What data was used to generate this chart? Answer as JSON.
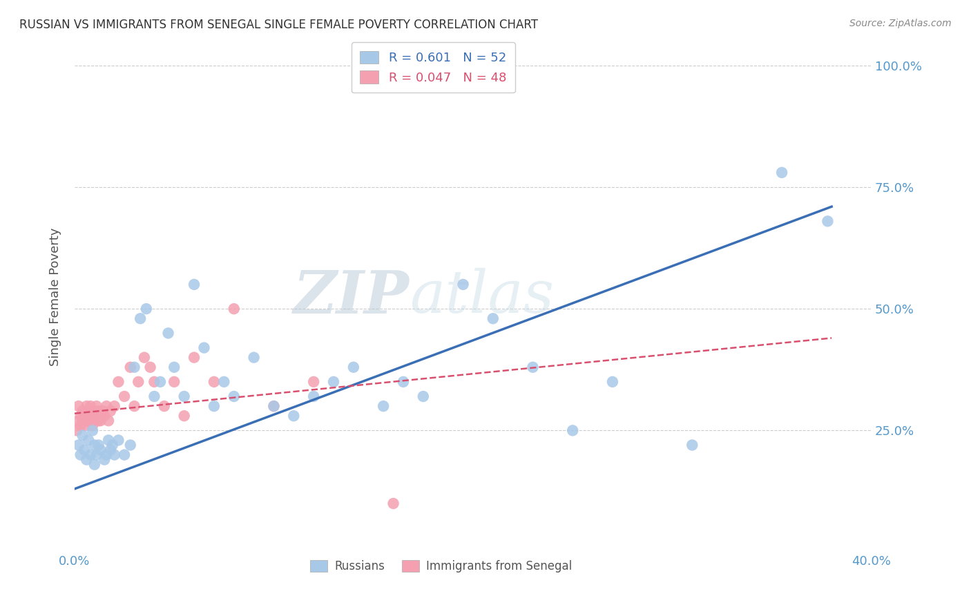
{
  "title": "RUSSIAN VS IMMIGRANTS FROM SENEGAL SINGLE FEMALE POVERTY CORRELATION CHART",
  "source": "Source: ZipAtlas.com",
  "ylabel": "Single Female Poverty",
  "xlim": [
    0.0,
    0.4
  ],
  "ylim": [
    0.0,
    1.05
  ],
  "x_ticks": [
    0.0,
    0.1,
    0.2,
    0.3,
    0.4
  ],
  "x_tick_labels": [
    "0.0%",
    "",
    "",
    "",
    "40.0%"
  ],
  "y_ticks": [
    0.0,
    0.25,
    0.5,
    0.75,
    1.0
  ],
  "y_tick_labels": [
    "",
    "25.0%",
    "50.0%",
    "75.0%",
    "100.0%"
  ],
  "russian_R": 0.601,
  "russian_N": 52,
  "senegal_R": 0.047,
  "senegal_N": 48,
  "russian_color": "#a8c8e8",
  "russian_line_color": "#3a6fb5",
  "senegal_color": "#f4a0b0",
  "senegal_line_color": "#d94f6e",
  "watermark_zip": "ZIP",
  "watermark_atlas": "atlas",
  "grid_color": "#cccccc",
  "russian_x": [
    0.002,
    0.003,
    0.004,
    0.005,
    0.006,
    0.007,
    0.008,
    0.009,
    0.01,
    0.01,
    0.011,
    0.012,
    0.013,
    0.015,
    0.016,
    0.017,
    0.018,
    0.019,
    0.02,
    0.022,
    0.025,
    0.028,
    0.03,
    0.033,
    0.036,
    0.04,
    0.043,
    0.047,
    0.05,
    0.055,
    0.06,
    0.065,
    0.07,
    0.075,
    0.08,
    0.09,
    0.1,
    0.11,
    0.12,
    0.13,
    0.14,
    0.155,
    0.165,
    0.175,
    0.195,
    0.21,
    0.23,
    0.25,
    0.27,
    0.31,
    0.355,
    0.378
  ],
  "russian_y": [
    0.22,
    0.2,
    0.24,
    0.21,
    0.19,
    0.23,
    0.2,
    0.25,
    0.22,
    0.18,
    0.2,
    0.22,
    0.21,
    0.19,
    0.2,
    0.23,
    0.21,
    0.22,
    0.2,
    0.23,
    0.2,
    0.22,
    0.38,
    0.48,
    0.5,
    0.32,
    0.35,
    0.45,
    0.38,
    0.32,
    0.55,
    0.42,
    0.3,
    0.35,
    0.32,
    0.4,
    0.3,
    0.28,
    0.32,
    0.35,
    0.38,
    0.3,
    0.35,
    0.32,
    0.55,
    0.48,
    0.38,
    0.25,
    0.35,
    0.22,
    0.78,
    0.68
  ],
  "senegal_x": [
    0.001,
    0.002,
    0.002,
    0.003,
    0.003,
    0.004,
    0.004,
    0.005,
    0.005,
    0.006,
    0.006,
    0.007,
    0.007,
    0.008,
    0.008,
    0.009,
    0.009,
    0.01,
    0.01,
    0.011,
    0.011,
    0.012,
    0.012,
    0.013,
    0.013,
    0.014,
    0.015,
    0.016,
    0.017,
    0.018,
    0.02,
    0.022,
    0.025,
    0.028,
    0.03,
    0.032,
    0.035,
    0.038,
    0.04,
    0.045,
    0.05,
    0.055,
    0.06,
    0.07,
    0.08,
    0.1,
    0.12,
    0.16
  ],
  "senegal_y": [
    0.25,
    0.27,
    0.3,
    0.26,
    0.28,
    0.29,
    0.27,
    0.28,
    0.26,
    0.3,
    0.27,
    0.29,
    0.28,
    0.27,
    0.3,
    0.28,
    0.26,
    0.29,
    0.27,
    0.28,
    0.3,
    0.27,
    0.29,
    0.28,
    0.27,
    0.29,
    0.28,
    0.3,
    0.27,
    0.29,
    0.3,
    0.35,
    0.32,
    0.38,
    0.3,
    0.35,
    0.4,
    0.38,
    0.35,
    0.3,
    0.35,
    0.28,
    0.4,
    0.35,
    0.5,
    0.3,
    0.35,
    0.1
  ],
  "russian_line_x": [
    0.0,
    0.38
  ],
  "russian_line_y": [
    0.13,
    0.71
  ],
  "senegal_line_x": [
    0.0,
    0.38
  ],
  "senegal_line_y": [
    0.285,
    0.44
  ]
}
